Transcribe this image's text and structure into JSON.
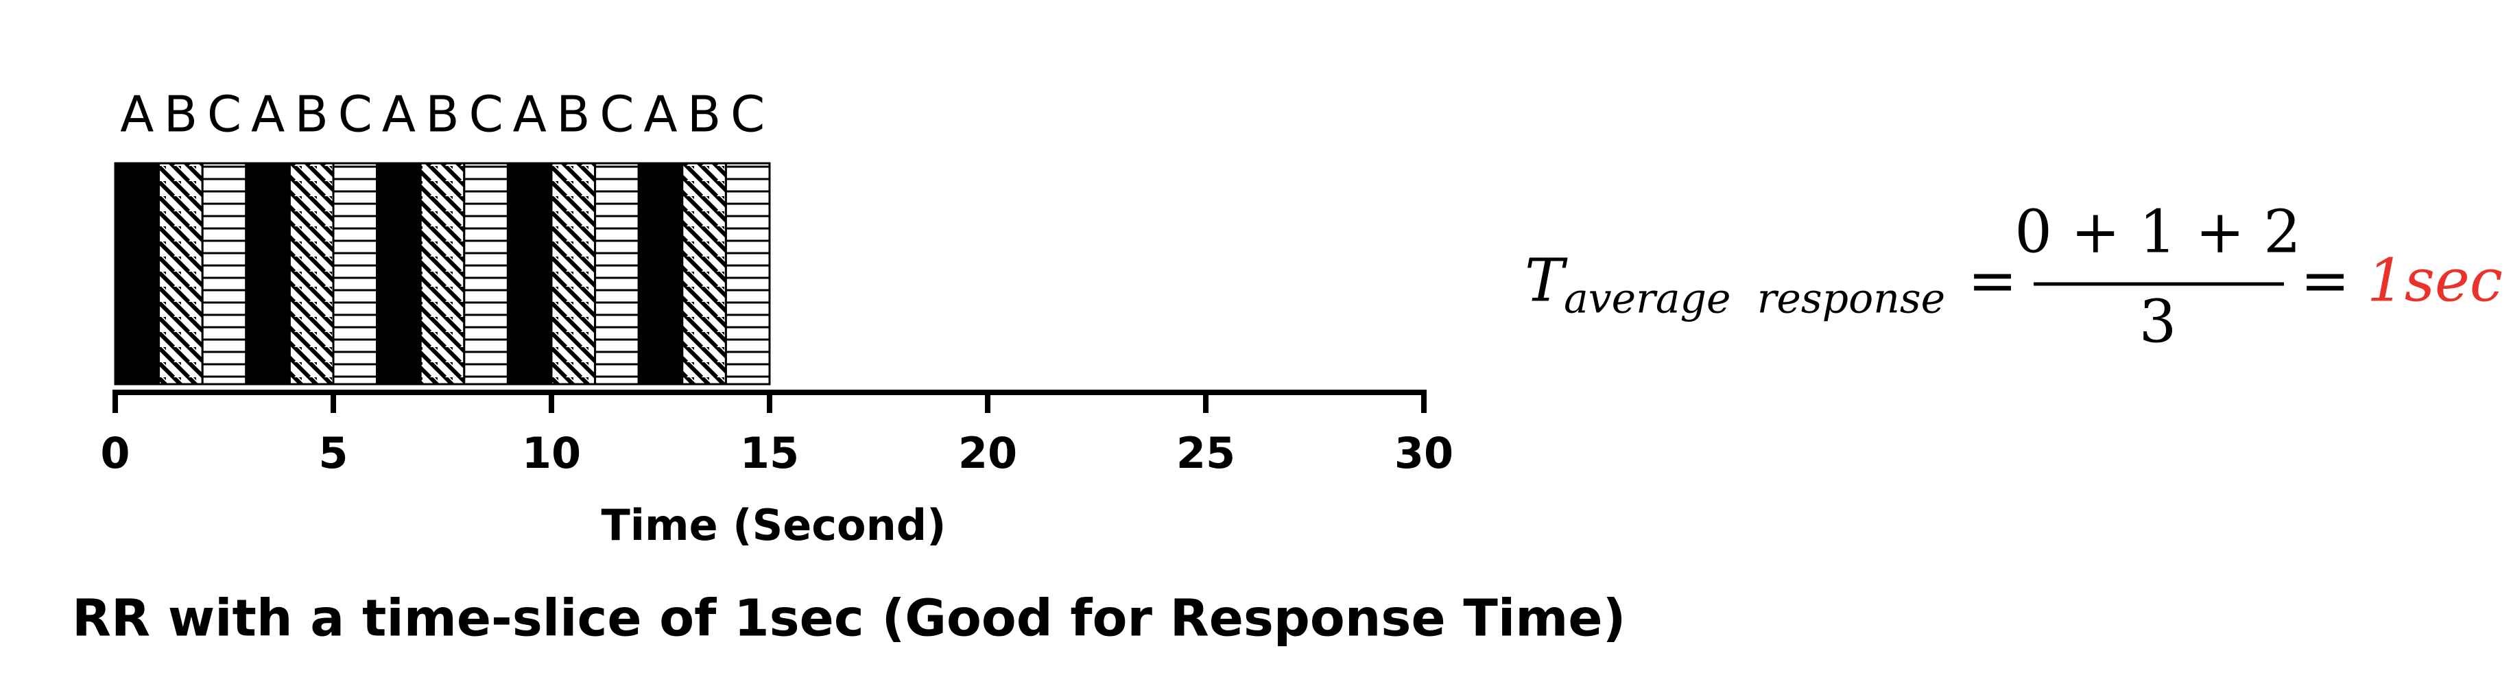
{
  "timeline": {
    "segments": [
      {
        "label": "A",
        "start": 0,
        "end": 1,
        "pattern": "solid"
      },
      {
        "label": "B",
        "start": 1,
        "end": 2,
        "pattern": "diagonal"
      },
      {
        "label": "C",
        "start": 2,
        "end": 3,
        "pattern": "horizontal"
      },
      {
        "label": "A",
        "start": 3,
        "end": 4,
        "pattern": "solid"
      },
      {
        "label": "B",
        "start": 4,
        "end": 5,
        "pattern": "diagonal"
      },
      {
        "label": "C",
        "start": 5,
        "end": 6,
        "pattern": "horizontal"
      },
      {
        "label": "A",
        "start": 6,
        "end": 7,
        "pattern": "solid"
      },
      {
        "label": "B",
        "start": 7,
        "end": 8,
        "pattern": "diagonal"
      },
      {
        "label": "C",
        "start": 8,
        "end": 9,
        "pattern": "horizontal"
      },
      {
        "label": "A",
        "start": 9,
        "end": 10,
        "pattern": "solid"
      },
      {
        "label": "B",
        "start": 10,
        "end": 11,
        "pattern": "diagonal"
      },
      {
        "label": "C",
        "start": 11,
        "end": 12,
        "pattern": "horizontal"
      },
      {
        "label": "A",
        "start": 12,
        "end": 13,
        "pattern": "solid"
      },
      {
        "label": "B",
        "start": 13,
        "end": 14,
        "pattern": "diagonal"
      },
      {
        "label": "C",
        "start": 14,
        "end": 15,
        "pattern": "horizontal"
      }
    ],
    "xlim": [
      0,
      30
    ],
    "xticks": [
      0,
      5,
      10,
      15,
      20,
      25,
      30
    ],
    "xlabel": "Time (Second)"
  },
  "caption": "RR with a time-slice of 1sec (Good for Response Time)",
  "formula": {
    "symbol": "T",
    "subscript": "average  response",
    "equals": "=",
    "numerator": "0 + 1 + 2",
    "denominator": "3",
    "result": "1sec",
    "result_color": "#e8322a"
  }
}
